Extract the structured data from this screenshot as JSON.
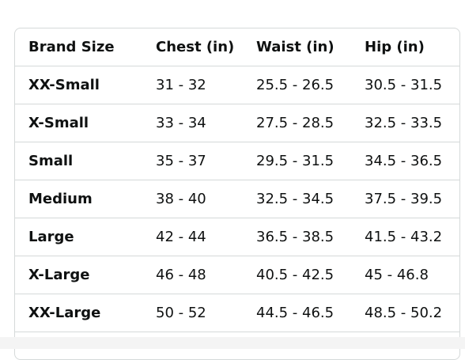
{
  "table": {
    "header": [
      "Brand Size",
      "Chest (in)",
      "Waist (in)",
      "Hip (in)"
    ],
    "rows": [
      [
        "XX-Small",
        "31 - 32",
        "25.5 - 26.5",
        "30.5 - 31.5"
      ],
      [
        "X-Small",
        "33 - 34",
        "27.5 - 28.5",
        "32.5 - 33.5"
      ],
      [
        "Small",
        "35 - 37",
        "29.5 - 31.5",
        "34.5 - 36.5"
      ],
      [
        "Medium",
        "38 - 40",
        "32.5 - 34.5",
        "37.5 - 39.5"
      ],
      [
        "Large",
        "42 - 44",
        "36.5 - 38.5",
        "41.5 - 43.2"
      ],
      [
        "X-Large",
        "46 - 48",
        "40.5 - 42.5",
        "45 - 46.8"
      ],
      [
        "XX-Large",
        "50 - 52",
        "44.5 - 46.5",
        "48.5 - 50.2"
      ]
    ]
  }
}
